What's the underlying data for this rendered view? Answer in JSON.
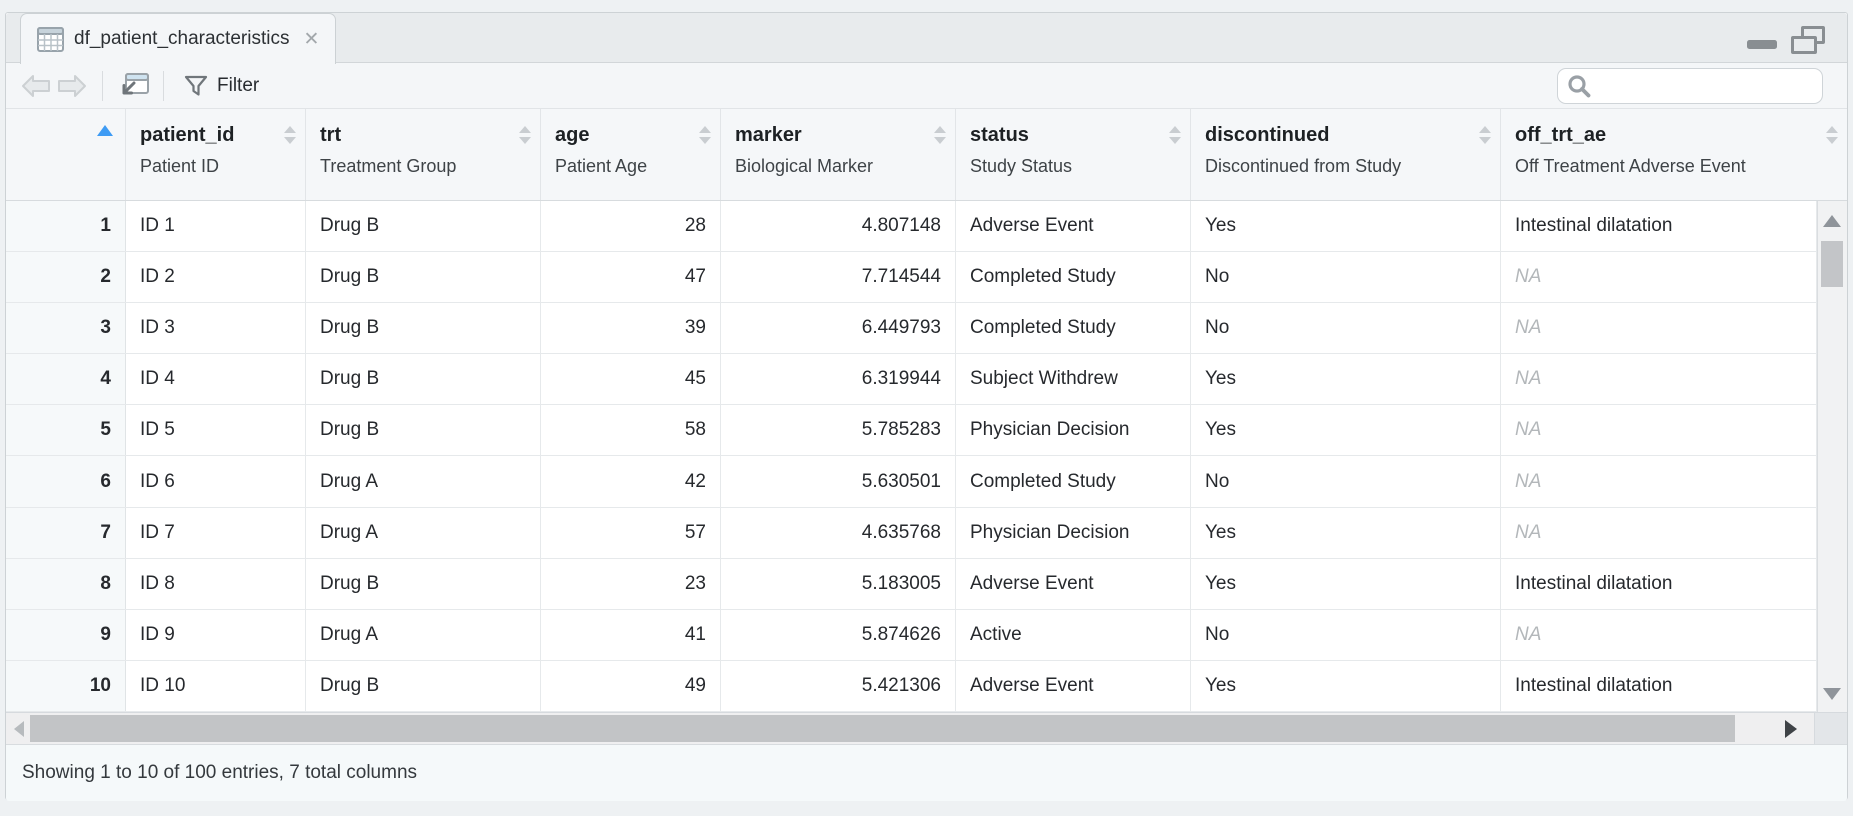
{
  "window": {
    "tab_title": "df_patient_characteristics",
    "close_glyph": "✕",
    "status_text": "Showing 1 to 10 of 100 entries, 7 total columns"
  },
  "toolbar": {
    "filter_label": "Filter",
    "search_value": "",
    "search_placeholder": ""
  },
  "icons": {
    "tab_icon": "table-grid",
    "close_icon": "x-cross",
    "back_icon": "arrow-left",
    "forward_icon": "arrow-right",
    "popout_icon": "open-in-new-window",
    "filter_icon": "funnel",
    "search_icon": "magnifier",
    "minimize_icon": "horizontal-bar",
    "restore_icon": "overlapping-panes",
    "sort_asc_icon": "blue-up-triangle",
    "sort_chevrons": "up-down-triangles"
  },
  "colors": {
    "sort_active": "#3e9bf4",
    "na_text": "#b3b7ba",
    "header_bg": "#f5f7f9",
    "tabstrip_bg": "#e8ebed",
    "statusbar_bg": "#f5f9fa"
  },
  "sort": {
    "column": "row-number",
    "direction": "ascending"
  },
  "table": {
    "columns": [
      {
        "name": "patient_id",
        "label": "Patient ID",
        "align": "left"
      },
      {
        "name": "trt",
        "label": "Treatment Group",
        "align": "left"
      },
      {
        "name": "age",
        "label": "Patient Age",
        "align": "right"
      },
      {
        "name": "marker",
        "label": "Biological Marker",
        "align": "right"
      },
      {
        "name": "status",
        "label": "Study Status",
        "align": "left"
      },
      {
        "name": "discontinued",
        "label": "Discontinued from Study",
        "align": "left"
      },
      {
        "name": "off_trt_ae",
        "label": "Off Treatment Adverse Event",
        "align": "left"
      }
    ],
    "rows": [
      {
        "n": "1",
        "patient_id": "ID 1",
        "trt": "Drug B",
        "age": "28",
        "marker": "4.807148",
        "status": "Adverse Event",
        "discontinued": "Yes",
        "off_trt_ae": "Intestinal dilatation"
      },
      {
        "n": "2",
        "patient_id": "ID 2",
        "trt": "Drug B",
        "age": "47",
        "marker": "7.714544",
        "status": "Completed Study",
        "discontinued": "No",
        "off_trt_ae": "NA"
      },
      {
        "n": "3",
        "patient_id": "ID 3",
        "trt": "Drug B",
        "age": "39",
        "marker": "6.449793",
        "status": "Completed Study",
        "discontinued": "No",
        "off_trt_ae": "NA"
      },
      {
        "n": "4",
        "patient_id": "ID 4",
        "trt": "Drug B",
        "age": "45",
        "marker": "6.319944",
        "status": "Subject Withdrew",
        "discontinued": "Yes",
        "off_trt_ae": "NA"
      },
      {
        "n": "5",
        "patient_id": "ID 5",
        "trt": "Drug B",
        "age": "58",
        "marker": "5.785283",
        "status": "Physician Decision",
        "discontinued": "Yes",
        "off_trt_ae": "NA"
      },
      {
        "n": "6",
        "patient_id": "ID 6",
        "trt": "Drug A",
        "age": "42",
        "marker": "5.630501",
        "status": "Completed Study",
        "discontinued": "No",
        "off_trt_ae": "NA"
      },
      {
        "n": "7",
        "patient_id": "ID 7",
        "trt": "Drug A",
        "age": "57",
        "marker": "4.635768",
        "status": "Physician Decision",
        "discontinued": "Yes",
        "off_trt_ae": "NA"
      },
      {
        "n": "8",
        "patient_id": "ID 8",
        "trt": "Drug B",
        "age": "23",
        "marker": "5.183005",
        "status": "Adverse Event",
        "discontinued": "Yes",
        "off_trt_ae": "Intestinal dilatation"
      },
      {
        "n": "9",
        "patient_id": "ID 9",
        "trt": "Drug A",
        "age": "41",
        "marker": "5.874626",
        "status": "Active",
        "discontinued": "No",
        "off_trt_ae": "NA"
      },
      {
        "n": "10",
        "patient_id": "ID 10",
        "trt": "Drug B",
        "age": "49",
        "marker": "5.421306",
        "status": "Adverse Event",
        "discontinued": "Yes",
        "off_trt_ae": "Intestinal dilatation"
      }
    ]
  }
}
